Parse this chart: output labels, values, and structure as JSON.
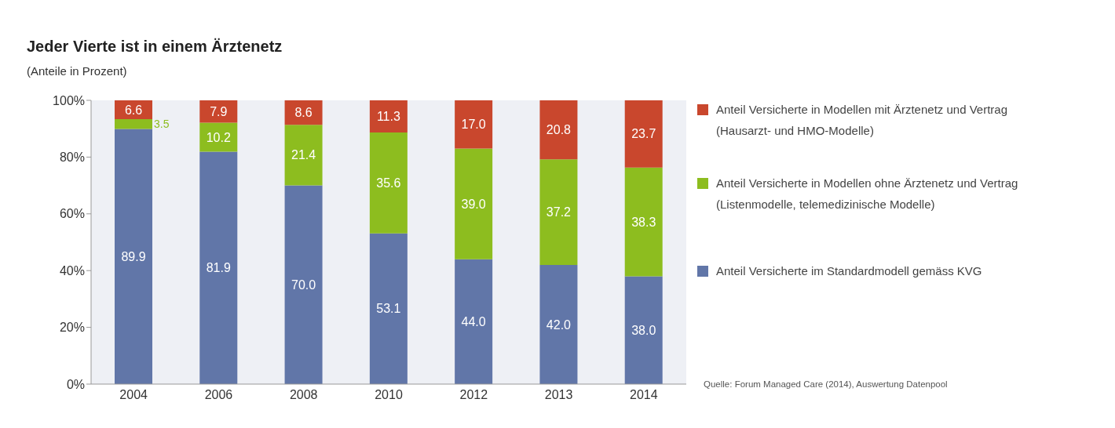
{
  "chart_data": {
    "type": "bar",
    "title": "Jeder Vierte ist in einem Ärztenetz",
    "subtitle": "(Anteile in Prozent)",
    "categories": [
      "2004",
      "2006",
      "2008",
      "2010",
      "2012",
      "2013",
      "2014"
    ],
    "stacked": true,
    "series": [
      {
        "name": "Anteil Versicherte im Standardmodell gemäss KVG",
        "color": "#6176a8",
        "values": [
          89.9,
          81.9,
          70.0,
          53.1,
          44.0,
          42.0,
          38.0
        ],
        "value_labels": [
          "89.9",
          "81.9",
          "70.0",
          "53.1",
          "44.0",
          "42.0",
          "38.0"
        ]
      },
      {
        "name": "Anteil Versicherte in Modellen ohne Ärztenetz und Vertrag (Listenmodelle, telemedizinische Modelle)",
        "color": "#8dbd1f",
        "values": [
          3.5,
          10.2,
          21.4,
          35.6,
          39.0,
          37.2,
          38.3
        ],
        "value_labels": [
          "3.5",
          "10.2",
          "21.4",
          "35.6",
          "39.0",
          "37.2",
          "38.3"
        ]
      },
      {
        "name": "Anteil Versicherte in Modellen mit Ärztenetz und Vertrag (Hausarzt- und HMO-Modelle)",
        "color": "#c9472d",
        "values": [
          6.6,
          7.9,
          8.6,
          11.3,
          17.0,
          20.8,
          23.7
        ],
        "value_labels": [
          "6.6",
          "7.9",
          "8.6",
          "11.3",
          "17.0",
          "20.8",
          "23.7"
        ]
      }
    ],
    "ylim": [
      0,
      100
    ],
    "yticks": [
      {
        "value": 0,
        "label": "0%"
      },
      {
        "value": 20,
        "label": "20%"
      },
      {
        "value": 40,
        "label": "40%"
      },
      {
        "value": 60,
        "label": "60%"
      },
      {
        "value": 80,
        "label": "80%"
      },
      {
        "value": 100,
        "label": "100%"
      }
    ],
    "legend": "right",
    "annotations": [
      "Quelle: Forum Managed Care (2014), Auswertung Datenpool"
    ]
  }
}
